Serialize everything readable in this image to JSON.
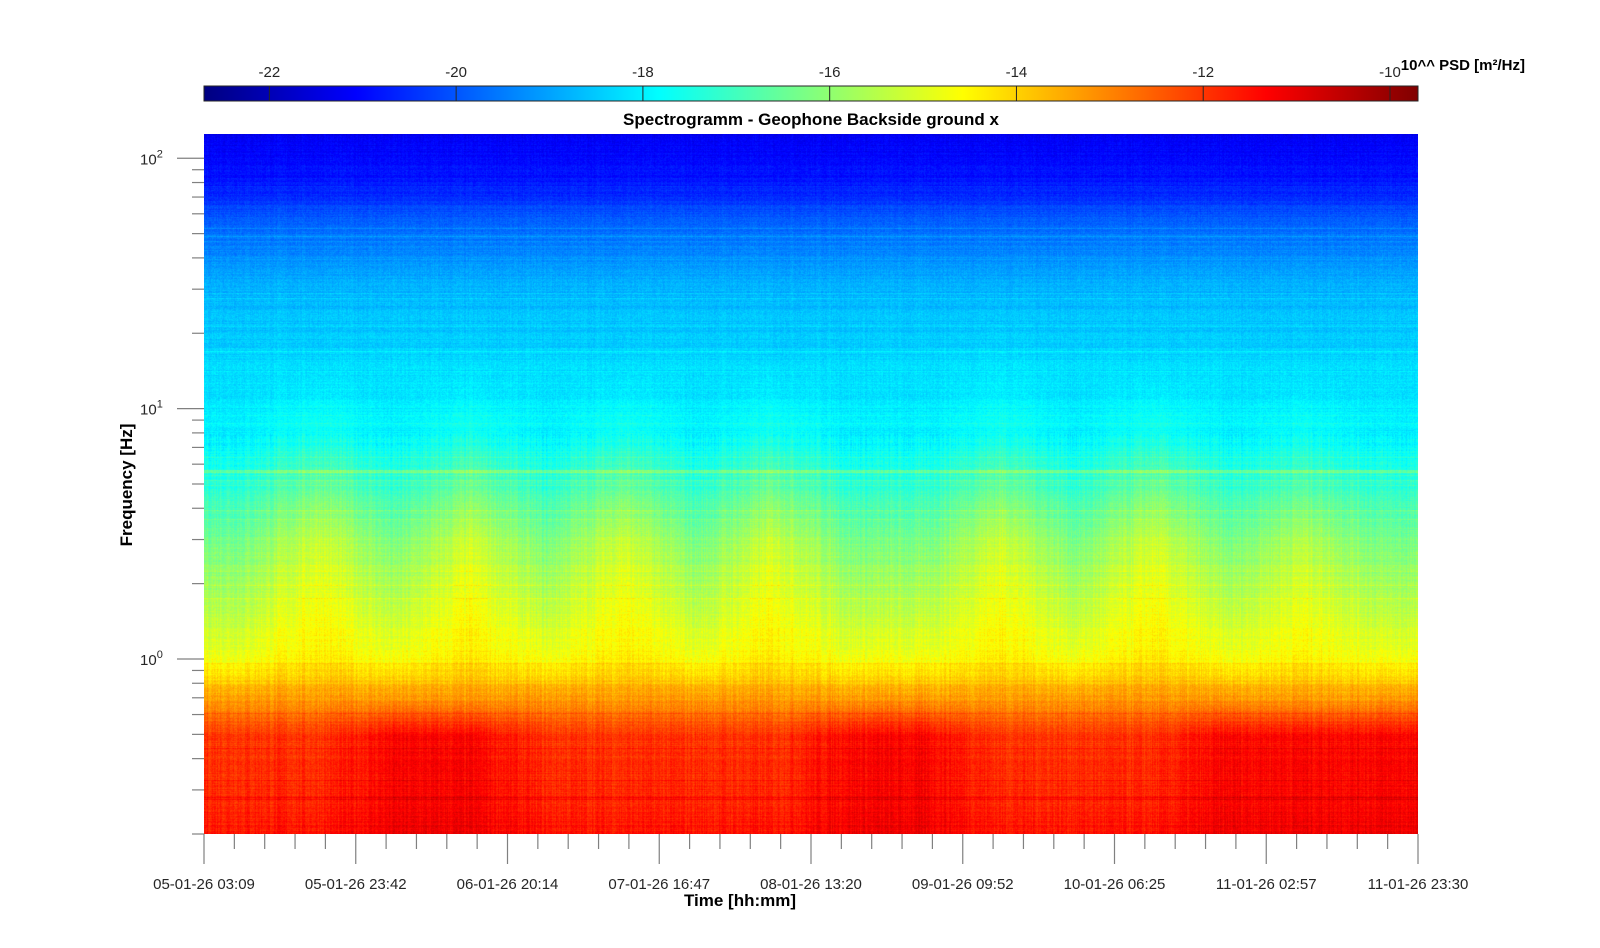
{
  "chart_data": {
    "type": "heatmap",
    "title": "Spectrogramm - Geophone Backside ground x",
    "xlabel": "Time [hh:mm]",
    "ylabel": "Frequency [Hz]",
    "x_tick_labels": [
      "05-01-26 03:09",
      "05-01-26 23:42",
      "06-01-26 20:14",
      "07-01-26 16:47",
      "08-01-26 13:20",
      "09-01-26 09:52",
      "10-01-26 06:25",
      "11-01-26 02:57",
      "11-01-26 23:30"
    ],
    "x_minor_ticks_per_interval": 4,
    "y_scale": "log",
    "ylim": [
      0.2,
      125
    ],
    "y_tick_labels": [
      {
        "base": "10",
        "exp": "0",
        "value": 1
      },
      {
        "base": "10",
        "exp": "1",
        "value": 10
      },
      {
        "base": "10",
        "exp": "2",
        "value": 100
      }
    ],
    "colorbar": {
      "label": "10^^ PSD [m²/Hz]",
      "colormap": "jet",
      "clim": [
        -22.7,
        -9.7
      ],
      "tick_labels": [
        "-22",
        "-20",
        "-18",
        "-16",
        "-14",
        "-12",
        "-10"
      ],
      "tick_values": [
        -22,
        -20,
        -18,
        -16,
        -14,
        -12,
        -10
      ],
      "location": "top"
    },
    "z_units": "log10 PSD [m²/Hz]",
    "time_columns": 16,
    "frequencies_hz": [
      120,
      80,
      50,
      30,
      15,
      8,
      5,
      3,
      1.5,
      1,
      0.7,
      0.5,
      0.3,
      0.2
    ],
    "z": [
      [
        -21.2,
        -21.2,
        -21.2,
        -21.2,
        -21.2,
        -21.2,
        -21.2,
        -21.2,
        -21.2,
        -21.2,
        -21.2,
        -21.2,
        -21.2,
        -21.2,
        -21.2,
        -21.2
      ],
      [
        -20.8,
        -20.8,
        -20.8,
        -20.8,
        -20.8,
        -20.8,
        -20.8,
        -20.8,
        -20.8,
        -20.8,
        -20.8,
        -20.8,
        -20.8,
        -20.8,
        -20.8,
        -20.8
      ],
      [
        -19.6,
        -19.6,
        -19.6,
        -19.6,
        -19.6,
        -19.6,
        -19.6,
        -19.6,
        -19.6,
        -19.6,
        -19.6,
        -19.6,
        -19.6,
        -19.6,
        -19.6,
        -19.6
      ],
      [
        -18.8,
        -18.8,
        -18.8,
        -18.8,
        -18.8,
        -18.8,
        -18.8,
        -18.8,
        -18.8,
        -18.8,
        -18.8,
        -18.8,
        -18.8,
        -18.8,
        -18.8,
        -18.8
      ],
      [
        -18.3,
        -18.3,
        -18.3,
        -18.3,
        -18.3,
        -18.3,
        -18.3,
        -18.3,
        -18.3,
        -18.3,
        -18.2,
        -18.3,
        -18.3,
        -18.3,
        -18.3,
        -18.3
      ],
      [
        -18.0,
        -17.6,
        -18.0,
        -17.6,
        -18.0,
        -17.6,
        -18.0,
        -17.6,
        -18.0,
        -18.0,
        -17.6,
        -18.0,
        -17.6,
        -18.0,
        -17.7,
        -18.0
      ],
      [
        -17.3,
        -16.5,
        -17.3,
        -16.5,
        -17.3,
        -16.5,
        -17.3,
        -16.5,
        -17.3,
        -17.3,
        -16.5,
        -17.3,
        -16.5,
        -17.3,
        -16.8,
        -17.3
      ],
      [
        -16.3,
        -15.2,
        -16.3,
        -15.2,
        -16.3,
        -15.2,
        -16.3,
        -15.2,
        -16.3,
        -16.3,
        -15.2,
        -16.3,
        -15.2,
        -16.3,
        -15.5,
        -16.3
      ],
      [
        -15.4,
        -14.6,
        -15.4,
        -14.6,
        -15.4,
        -14.6,
        -15.4,
        -14.6,
        -15.4,
        -15.4,
        -14.6,
        -15.4,
        -14.6,
        -15.4,
        -14.8,
        -15.4
      ],
      [
        -14.7,
        -14.3,
        -14.7,
        -14.3,
        -14.7,
        -14.3,
        -14.7,
        -14.3,
        -14.7,
        -14.7,
        -14.3,
        -14.7,
        -14.3,
        -14.7,
        -14.4,
        -14.7
      ],
      [
        -13.3,
        -13.3,
        -13.3,
        -13.3,
        -13.3,
        -13.3,
        -13.3,
        -13.3,
        -13.3,
        -13.3,
        -13.3,
        -13.3,
        -13.3,
        -13.3,
        -13.3,
        -13.3
      ],
      [
        -12.0,
        -12.0,
        -11.4,
        -11.4,
        -12.0,
        -12.0,
        -12.0,
        -12.0,
        -11.4,
        -11.4,
        -12.0,
        -12.0,
        -12.0,
        -11.4,
        -11.4,
        -11.4
      ],
      [
        -11.8,
        -11.8,
        -11.3,
        -11.3,
        -11.8,
        -11.8,
        -11.8,
        -11.8,
        -11.3,
        -11.3,
        -11.8,
        -11.8,
        -11.8,
        -11.3,
        -11.3,
        -11.3
      ],
      [
        -11.6,
        -11.6,
        -11.2,
        -11.2,
        -11.6,
        -11.6,
        -11.6,
        -11.6,
        -11.2,
        -11.2,
        -11.6,
        -11.6,
        -11.6,
        -11.2,
        -11.2,
        -11.2
      ]
    ],
    "grid": false,
    "legend": "none"
  }
}
